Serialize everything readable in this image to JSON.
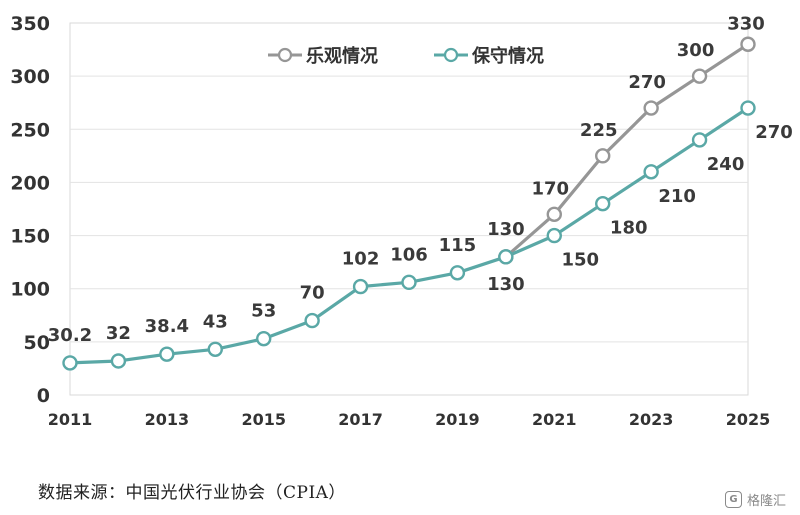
{
  "chart_data": {
    "type": "line",
    "title": "",
    "xlabel": "",
    "ylabel": "",
    "ylim": [
      0,
      350
    ],
    "yticks": [
      0,
      50,
      100,
      150,
      200,
      250,
      300,
      350
    ],
    "x": [
      2011,
      2012,
      2013,
      2014,
      2015,
      2016,
      2017,
      2018,
      2019,
      2020,
      2021,
      2022,
      2023,
      2024,
      2025
    ],
    "xticks": [
      "2011",
      "2013",
      "2015",
      "2017",
      "2019",
      "2021",
      "2023",
      "2025"
    ],
    "grid": true,
    "legend_position": "top-center",
    "series": [
      {
        "name": "乐观情况",
        "color": "#969696",
        "x": [
          2020,
          2021,
          2022,
          2023,
          2024,
          2025
        ],
        "values": [
          130,
          170,
          225,
          270,
          300,
          330
        ],
        "labels": [
          "170",
          "225",
          "270",
          "300",
          "330"
        ]
      },
      {
        "name": "保守情况",
        "color": "#5aa8a6",
        "x": [
          2011,
          2012,
          2013,
          2014,
          2015,
          2016,
          2017,
          2018,
          2019,
          2020,
          2021,
          2022,
          2023,
          2024,
          2025
        ],
        "values": [
          30.2,
          32,
          38.4,
          43,
          53,
          70,
          102,
          106,
          115,
          130,
          150,
          180,
          210,
          240,
          270
        ],
        "labels": [
          "30.2",
          "32",
          "38.4",
          "43",
          "53",
          "70",
          "102",
          "106",
          "115",
          "130",
          "150",
          "180",
          "210",
          "240",
          "270"
        ],
        "extra_label": "130"
      }
    ]
  },
  "footer": {
    "source": "数据来源：中国光伏行业协会（CPIA）",
    "watermark_text": "格隆汇",
    "watermark_logo": "G"
  }
}
